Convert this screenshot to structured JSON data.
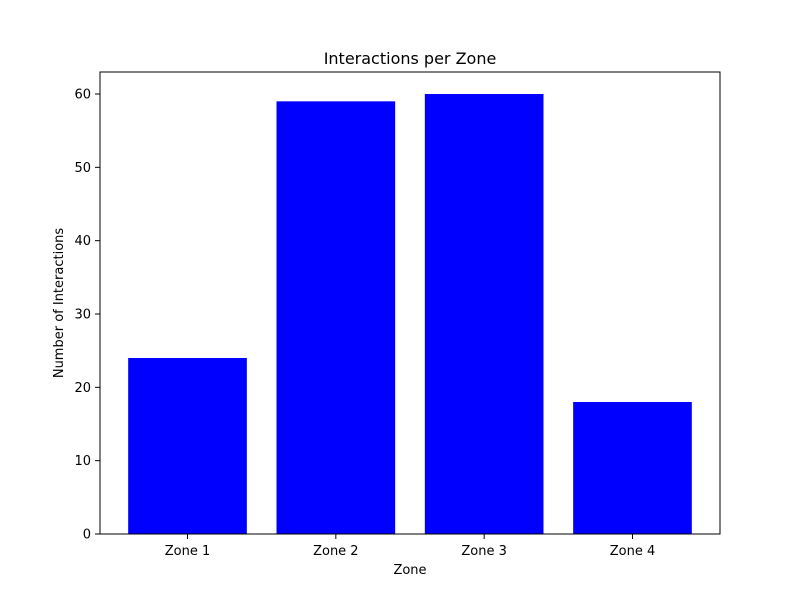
{
  "chart_data": {
    "type": "bar",
    "title": "Interactions per Zone",
    "xlabel": "Zone",
    "ylabel": "Number of Interactions",
    "categories": [
      "Zone 1",
      "Zone 2",
      "Zone 3",
      "Zone 4"
    ],
    "values": [
      24,
      59,
      60,
      18
    ],
    "ylim": [
      0,
      63
    ],
    "yticks": [
      0,
      10,
      20,
      30,
      40,
      50,
      60
    ],
    "bar_color": "#0000ff",
    "grid": false,
    "legend": "none"
  }
}
